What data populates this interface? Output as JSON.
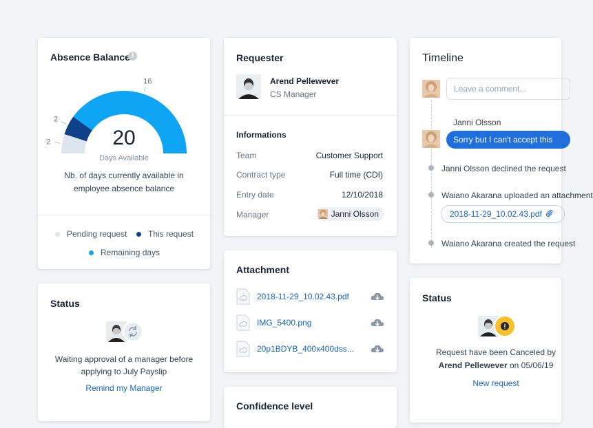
{
  "colors": {
    "accent": "#1e6fdc",
    "remaining": "#0ea5f5",
    "this_request": "#0f4189",
    "pending": "#dfe5ee",
    "warning": "#f8c02d"
  },
  "absence": {
    "title": "Absence Balance",
    "info_icon": "i",
    "gauge": {
      "available": "20",
      "available_label": "Days Available",
      "segments": [
        {
          "name": "Pending request",
          "value": 2,
          "label": "2"
        },
        {
          "name": "This request",
          "value": 2,
          "label": "2"
        },
        {
          "name": "Remaining days",
          "value": 16,
          "label": "16"
        }
      ]
    },
    "description": "Nb. of days currently available in employee absence balance",
    "legend": {
      "pending": "Pending request",
      "this_request": "This request",
      "remaining": "Remaining days"
    }
  },
  "status_left": {
    "title": "Status",
    "message": "Waiting approval of a manager before applying to July Payslip",
    "link": "Remind my Manager",
    "icons": [
      "avatar",
      "refresh-icon"
    ]
  },
  "requester": {
    "title": "Requester",
    "name": "Arend Pellewever",
    "role": "CS Manager",
    "info_title": "Informations",
    "rows": [
      {
        "label": "Team",
        "value": "Customer Support"
      },
      {
        "label": "Contract type",
        "value": "Full time (CDI)"
      },
      {
        "label": "Entry date",
        "value": "12/10/2018"
      },
      {
        "label": "Manager",
        "value": "Janni Olsson"
      }
    ]
  },
  "attachment": {
    "title": "Attachment",
    "files": [
      {
        "name": "2018-11-29_10.02.43.pdf"
      },
      {
        "name": "IMG_5400.png"
      },
      {
        "name": "20p1BDYB_400x400dss..."
      }
    ]
  },
  "confidence": {
    "title": "Confidence level"
  },
  "timeline": {
    "title": "Timeline",
    "comment_placeholder": "Leave a comment...",
    "message_author": "Janni Olsson",
    "message_text": "Sorry but I can't accept this",
    "events": [
      "Janni Olsson declined the request",
      "Waiano Akarana uploaded an attachment",
      "Waiano Akarana created the request"
    ],
    "file_pill": "2018-11-29_10.02.43.pdf"
  },
  "status_right": {
    "title": "Status",
    "line1": "Request have been Canceled by",
    "name": "Arend Pellewever",
    "on_date": " on 05/06/19",
    "link": "New request"
  }
}
